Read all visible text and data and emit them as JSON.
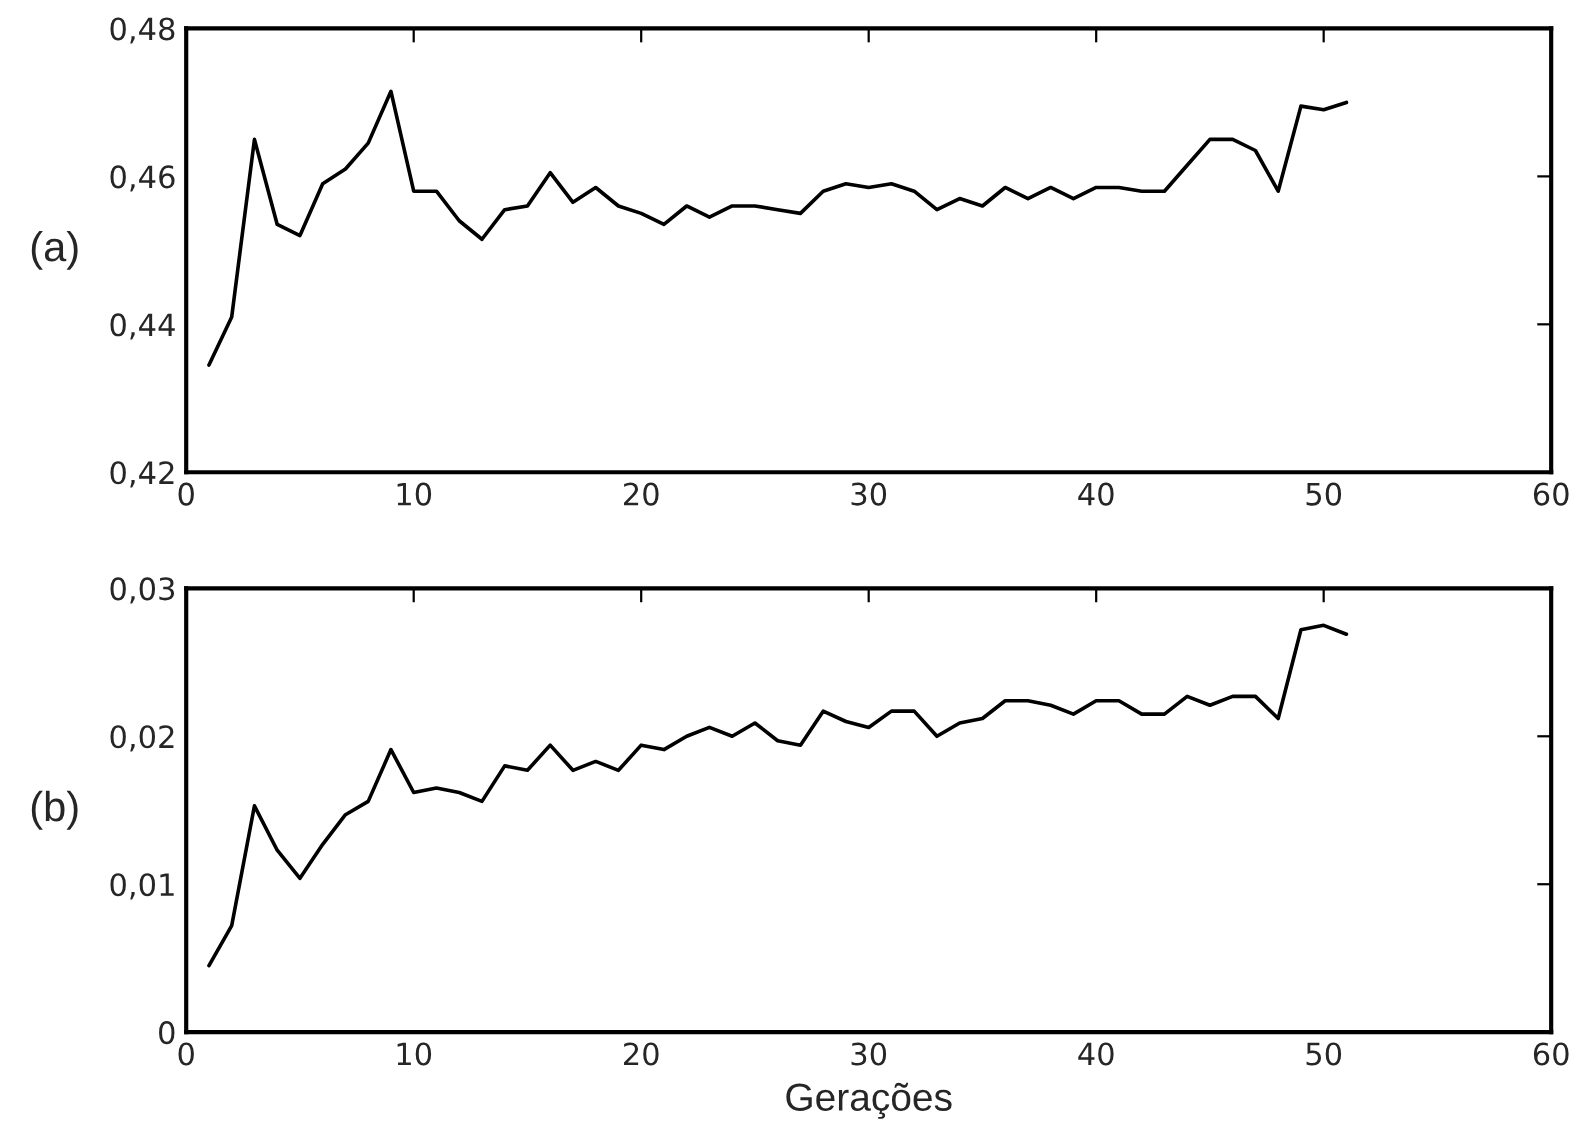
{
  "chart_data": [
    {
      "type": "line",
      "annotations": [
        "(a)"
      ],
      "x": [
        1,
        2,
        3,
        4,
        5,
        6,
        7,
        8,
        9,
        10,
        11,
        12,
        13,
        14,
        15,
        16,
        17,
        18,
        19,
        20,
        21,
        22,
        23,
        24,
        25,
        26,
        27,
        28,
        29,
        30,
        31,
        32,
        33,
        34,
        35,
        36,
        37,
        38,
        39,
        40,
        41,
        42,
        43,
        44,
        45,
        46,
        47,
        48,
        49,
        50,
        51
      ],
      "series": [
        {
          "color": "#000000",
          "values": [
            0.4345,
            0.441,
            0.465,
            0.4535,
            0.452,
            0.459,
            0.461,
            0.4645,
            0.4715,
            0.458,
            0.458,
            0.454,
            0.4515,
            0.4555,
            0.456,
            0.4605,
            0.4565,
            0.4585,
            0.456,
            0.455,
            0.4535,
            0.456,
            0.4545,
            0.456,
            0.456,
            0.4555,
            0.455,
            0.458,
            0.459,
            0.4585,
            0.459,
            0.458,
            0.4555,
            0.457,
            0.456,
            0.4585,
            0.457,
            0.4585,
            0.457,
            0.4585,
            0.4585,
            0.458,
            0.458,
            0.4615,
            0.465,
            0.465,
            0.4635,
            0.458,
            0.4695,
            0.469,
            0.47
          ]
        }
      ],
      "xlim": [
        0,
        60
      ],
      "xticks": [
        0,
        10,
        20,
        30,
        40,
        50,
        60
      ],
      "ylim": [
        0.42,
        0.48
      ],
      "yticks": [
        {
          "value": 0.42,
          "label": "0,42"
        },
        {
          "value": 0.44,
          "label": "0,44"
        },
        {
          "value": 0.46,
          "label": "0,46"
        },
        {
          "value": 0.48,
          "label": "0,48"
        }
      ],
      "grid": false,
      "legend": false,
      "marker": "none",
      "line_style": "solid"
    },
    {
      "type": "line",
      "annotations": [
        "(b)"
      ],
      "xlabel": "Gerações",
      "x": [
        1,
        2,
        3,
        4,
        5,
        6,
        7,
        8,
        9,
        10,
        11,
        12,
        13,
        14,
        15,
        16,
        17,
        18,
        19,
        20,
        21,
        22,
        23,
        24,
        25,
        26,
        27,
        28,
        29,
        30,
        31,
        32,
        33,
        34,
        35,
        36,
        37,
        38,
        39,
        40,
        41,
        42,
        43,
        44,
        45,
        46,
        47,
        48,
        49,
        50,
        51
      ],
      "series": [
        {
          "color": "#000000",
          "values": [
            0.0045,
            0.0072,
            0.0153,
            0.0123,
            0.0104,
            0.0127,
            0.0147,
            0.0156,
            0.0191,
            0.0162,
            0.0165,
            0.0162,
            0.0156,
            0.018,
            0.0177,
            0.0194,
            0.0177,
            0.0183,
            0.0177,
            0.0194,
            0.0191,
            0.02,
            0.0206,
            0.02,
            0.0209,
            0.0197,
            0.0194,
            0.0217,
            0.021,
            0.0206,
            0.0217,
            0.0217,
            0.02,
            0.0209,
            0.0212,
            0.0224,
            0.0224,
            0.0221,
            0.0215,
            0.0224,
            0.0224,
            0.0215,
            0.0215,
            0.0227,
            0.0221,
            0.0227,
            0.0227,
            0.0212,
            0.0272,
            0.0275,
            0.0269
          ]
        }
      ],
      "xlim": [
        0,
        60
      ],
      "xticks": [
        0,
        10,
        20,
        30,
        40,
        50,
        60
      ],
      "ylim": [
        0,
        0.03
      ],
      "yticks": [
        0,
        {
          "value": 0.01,
          "label": "0,01"
        },
        {
          "value": 0.02,
          "label": "0,02"
        },
        {
          "value": 0.03,
          "label": "0,03"
        }
      ],
      "grid": false,
      "legend": false,
      "marker": "none",
      "line_style": "solid"
    }
  ]
}
